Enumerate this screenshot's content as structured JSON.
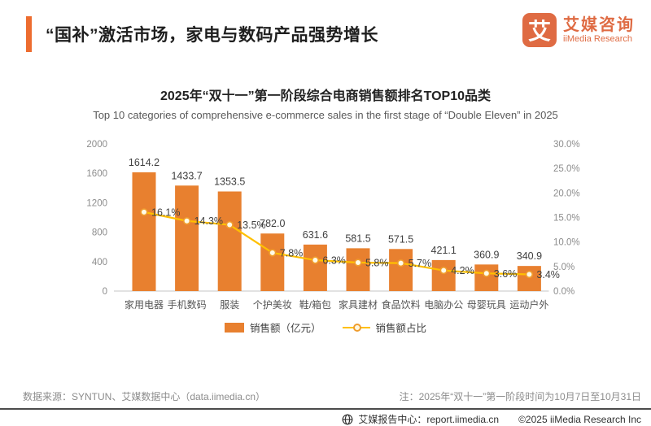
{
  "header": {
    "title": "“国补”激活市场，家电与数码产品强势增长",
    "accent_color": "#ed6c2f",
    "logo": {
      "mark": "艾",
      "brand_cn": "艾媒咨询",
      "brand_en": "iiMedia Research",
      "color": "#df6b43"
    }
  },
  "chart_data": {
    "type": "bar",
    "combo": "bar+line",
    "title": "2025年“双十一”第一阶段综合电商销售额排名TOP10品类",
    "subtitle": "Top 10 categories of comprehensive e-commerce sales in the first stage of “Double Eleven” in 2025",
    "categories": [
      "家用电器",
      "手机数码",
      "服装",
      "个护美妆",
      "鞋/箱包",
      "家具建材",
      "食品饮料",
      "电脑办公",
      "母婴玩具",
      "运动户外"
    ],
    "series": [
      {
        "name": "销售额（亿元）",
        "type": "bar",
        "axis": "left",
        "color": "#e8802f",
        "values": [
          1614.2,
          1433.7,
          1353.5,
          782.0,
          631.6,
          581.5,
          571.5,
          421.1,
          360.9,
          340.9
        ],
        "labels": [
          "1614.2",
          "1433.7",
          "1353.5",
          "782.0",
          "631.6",
          "581.5",
          "571.5",
          "421.1",
          "360.9",
          "340.9"
        ]
      },
      {
        "name": "销售额占比",
        "type": "line",
        "axis": "right",
        "color": "#ffc000",
        "marker_stroke": "#f09e2e",
        "marker_fill": "#fffbe8",
        "values": [
          16.1,
          14.3,
          13.5,
          7.8,
          6.3,
          5.8,
          5.7,
          4.2,
          3.6,
          3.4
        ],
        "labels": [
          "16.1%",
          "14.3%",
          "13.5%",
          "7.8%",
          "6.3%",
          "5.8%",
          "5.7%",
          "4.2%",
          "3.6%",
          "3.4%"
        ]
      }
    ],
    "left_axis": {
      "max": 2000,
      "ticks": [
        0,
        400,
        800,
        1200,
        1600,
        2000
      ],
      "tick_labels": [
        "0",
        "400",
        "800",
        "1200",
        "1600",
        "2000"
      ]
    },
    "right_axis": {
      "max": 30,
      "ticks": [
        0,
        5,
        10,
        15,
        20,
        25,
        30
      ],
      "tick_labels": [
        "0.0%",
        "5.0%",
        "10.0%",
        "15.0%",
        "20.0%",
        "25.0%",
        "30.0%"
      ]
    },
    "legend_position": "bottom",
    "grid": false
  },
  "footer": {
    "source": "数据来源：SYNTUN、艾媒数据中心（data.iimedia.cn）",
    "note": "注：2025年“双十一”第一阶段时间为10月7日至10月31日",
    "report_center": "艾媒报告中心：report.iimedia.cn",
    "copyright": "©2025  iiMedia Research Inc"
  }
}
